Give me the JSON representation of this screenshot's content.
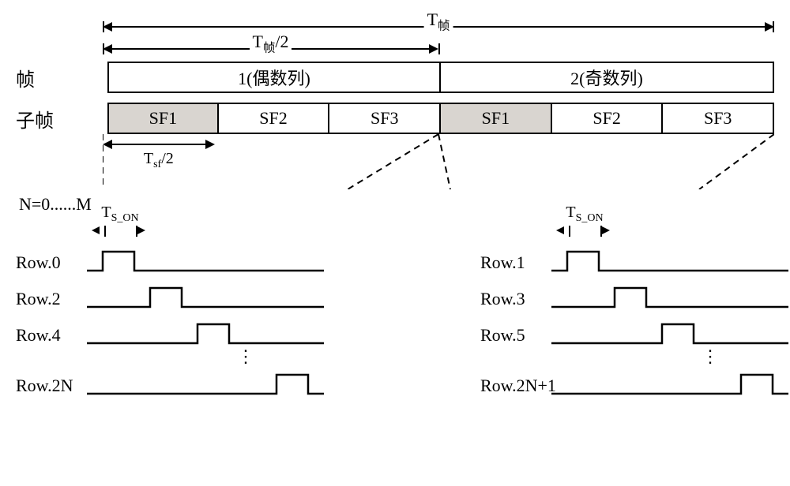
{
  "dims": {
    "t_frame": "T<sub>帧</sub>",
    "t_half": "T<sub>帧</sub>/2",
    "t_sf_half": "T<sub>sf</sub>/2",
    "t_s_on": "T<sub>S_ON</sub>"
  },
  "frame_row": {
    "title": "帧",
    "cells": [
      {
        "label": "1(偶数列)",
        "width_pct": 50,
        "shaded": false
      },
      {
        "label": "2(奇数列)",
        "width_pct": 50,
        "shaded": false
      }
    ]
  },
  "subframe_row": {
    "title": "子帧",
    "cells": [
      {
        "label": "SF1",
        "width_pct": 16.67,
        "shaded": true
      },
      {
        "label": "SF2",
        "width_pct": 16.67,
        "shaded": false
      },
      {
        "label": "SF3",
        "width_pct": 16.67,
        "shaded": false
      },
      {
        "label": "SF1",
        "width_pct": 16.67,
        "shaded": true
      },
      {
        "label": "SF2",
        "width_pct": 16.67,
        "shaded": false
      },
      {
        "label": "SF3",
        "width_pct": 16.65,
        "shaded": false
      }
    ]
  },
  "scan_header_text": "N=0......M",
  "scan": {
    "pulse_width": 40,
    "pulse_height": 24,
    "line_width": 300,
    "stroke": "#000000",
    "stroke_width": 2.5,
    "rows_left": [
      {
        "label": "Row.0",
        "offset": 20
      },
      {
        "label": "Row.2",
        "offset": 80
      },
      {
        "label": "Row.4",
        "offset": 140
      },
      {
        "label": "Row.2N",
        "offset": 240
      }
    ],
    "rows_right": [
      {
        "label": "Row.1",
        "offset": 20
      },
      {
        "label": "Row.3",
        "offset": 80
      },
      {
        "label": "Row.5",
        "offset": 140
      },
      {
        "label": "Row.2N+1",
        "offset": 240
      }
    ]
  },
  "layout": {
    "frame_area_width": 850,
    "sf1_width_pct": 16.67
  },
  "colors": {
    "bg": "#ffffff",
    "fg": "#000000",
    "shade": "#d9d5d0"
  }
}
